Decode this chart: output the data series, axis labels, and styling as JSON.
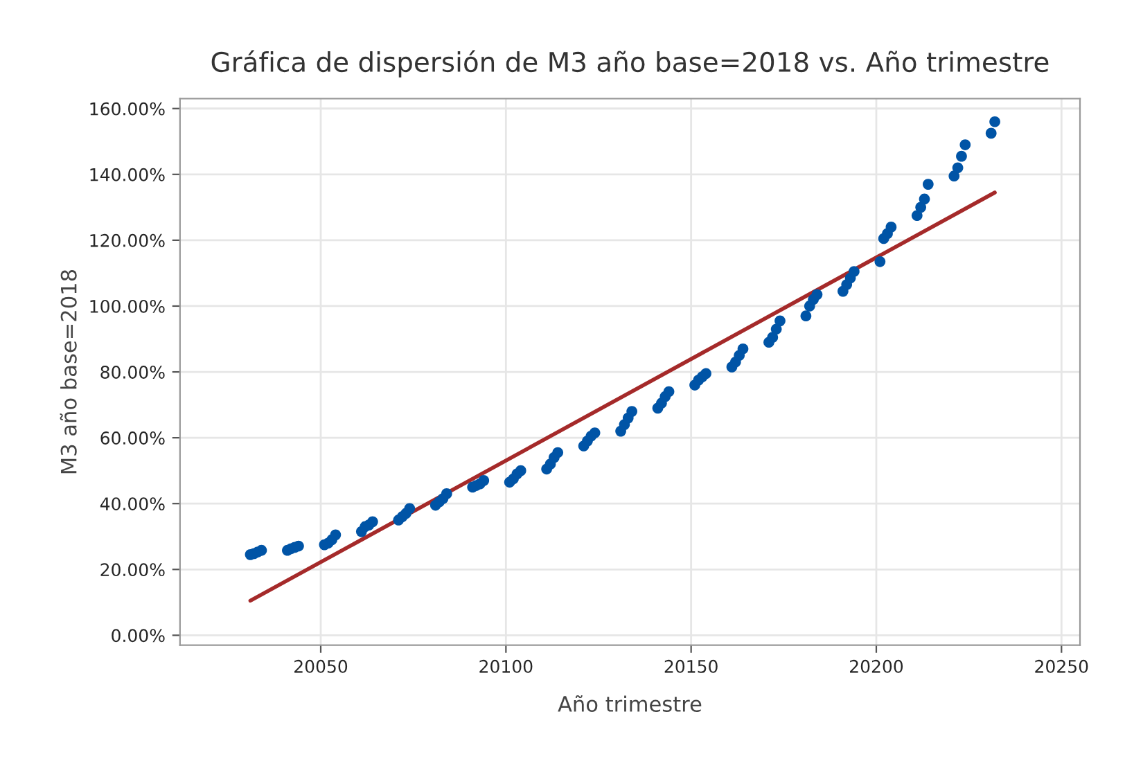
{
  "chart_data": {
    "type": "scatter",
    "title": "Gráfica de dispersión de M3 año base=2018 vs. Año trimestre",
    "xlabel": "Año trimestre",
    "ylabel": "M3 año base=2018",
    "xlim": [
      20012,
      20255
    ],
    "xticks": [
      20050,
      20100,
      20150,
      20200,
      20250
    ],
    "ylim": [
      -3,
      163
    ],
    "yticks": [
      {
        "value": 0,
        "label": "0.00%"
      },
      {
        "value": 20,
        "label": "20.00%"
      },
      {
        "value": 40,
        "label": "40.00%"
      },
      {
        "value": 60,
        "label": "60.00%"
      },
      {
        "value": 80,
        "label": "80.00%"
      },
      {
        "value": 100,
        "label": "100.00%"
      },
      {
        "value": 120,
        "label": "120.00%"
      },
      {
        "value": 140,
        "label": "140.00%"
      },
      {
        "value": 160,
        "label": "160.00%"
      }
    ],
    "grid": true,
    "series": [
      {
        "marker": "circle",
        "color": "#0054a6",
        "x": [
          20031,
          20032,
          20033,
          20034,
          20041,
          20042,
          20043,
          20044,
          20051,
          20052,
          20053,
          20054,
          20061,
          20062,
          20063,
          20064,
          20071,
          20072,
          20073,
          20074,
          20081,
          20082,
          20083,
          20084,
          20091,
          20092,
          20093,
          20094,
          20101,
          20102,
          20103,
          20104,
          20111,
          20112,
          20113,
          20114,
          20121,
          20122,
          20123,
          20124,
          20131,
          20132,
          20133,
          20134,
          20141,
          20142,
          20143,
          20144,
          20151,
          20152,
          20153,
          20154,
          20161,
          20162,
          20163,
          20164,
          20171,
          20172,
          20173,
          20174,
          20181,
          20182,
          20183,
          20184,
          20191,
          20192,
          20193,
          20194,
          20201,
          20202,
          20203,
          20204,
          20211,
          20212,
          20213,
          20214,
          20221,
          20222,
          20223,
          20224,
          20231,
          20232
        ],
        "values": [
          24.5,
          24.8,
          25.3,
          25.8,
          25.8,
          26.3,
          26.7,
          27.1,
          27.5,
          28,
          29,
          30.5,
          31.5,
          33,
          33.5,
          34.5,
          35,
          36,
          37,
          38.5,
          39.5,
          40.5,
          41.5,
          43,
          45,
          45.5,
          46,
          47,
          46.5,
          47.5,
          49,
          50,
          50.5,
          52,
          54,
          55.5,
          57.5,
          59,
          60.5,
          61.5,
          62,
          64,
          66,
          68,
          69,
          70.5,
          72.5,
          74,
          76,
          77.5,
          78.5,
          79.5,
          81.5,
          83,
          85,
          87,
          89,
          90.5,
          93,
          95.5,
          97,
          100,
          102,
          103.5,
          104.5,
          106.5,
          108.5,
          110.5,
          113.5,
          120.5,
          122,
          124,
          127.5,
          130,
          132.5,
          137,
          139.5,
          142,
          145.5,
          149,
          152.5,
          156
        ]
      },
      {
        "type": "line",
        "color": "#a52a2a",
        "line_style": "solid",
        "x": [
          20031,
          20232
        ],
        "values": [
          10.5,
          134.5
        ]
      }
    ]
  }
}
